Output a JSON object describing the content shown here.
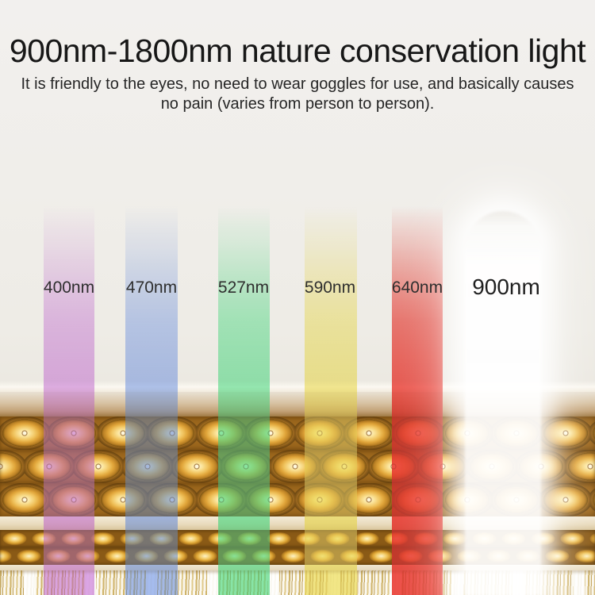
{
  "header": {
    "title": "900nm-1800nm nature conservation light",
    "subtitle_line1": "It is friendly to the eyes, no need to wear goggles for use, and basically causes",
    "subtitle_line2": "no pain (varies from person to person)."
  },
  "spectrum": {
    "bars": [
      {
        "label": "400nm",
        "hex": "#d9a0e4",
        "rgb": "217,160,228",
        "multiply_alpha": 0.9,
        "overlay_alpha": 0.42
      },
      {
        "label": "470nm",
        "hex": "#a0b8ee",
        "rgb": "160,184,238",
        "multiply_alpha": 0.9,
        "overlay_alpha": 0.42
      },
      {
        "label": "527nm",
        "hex": "#82e6a6",
        "rgb": "130,230,168",
        "multiply_alpha": 0.9,
        "overlay_alpha": 0.46
      },
      {
        "label": "590nm",
        "hex": "#f1e682",
        "rgb": "241,230,130",
        "multiply_alpha": 0.92,
        "overlay_alpha": 0.46
      },
      {
        "label": "640nm",
        "hex": "#ec4a42",
        "rgb": "236,74,66",
        "multiply_alpha": 0.92,
        "overlay_alpha": 0.6
      },
      {
        "label": "900nm",
        "hex": "#ffffff",
        "white": true
      }
    ]
  },
  "palette": {
    "background": "#f0eee9",
    "title_text": "#171717",
    "label_text": "#2e2e2e",
    "device_gold": "#e0a838",
    "device_cream": "#f3ead6"
  }
}
